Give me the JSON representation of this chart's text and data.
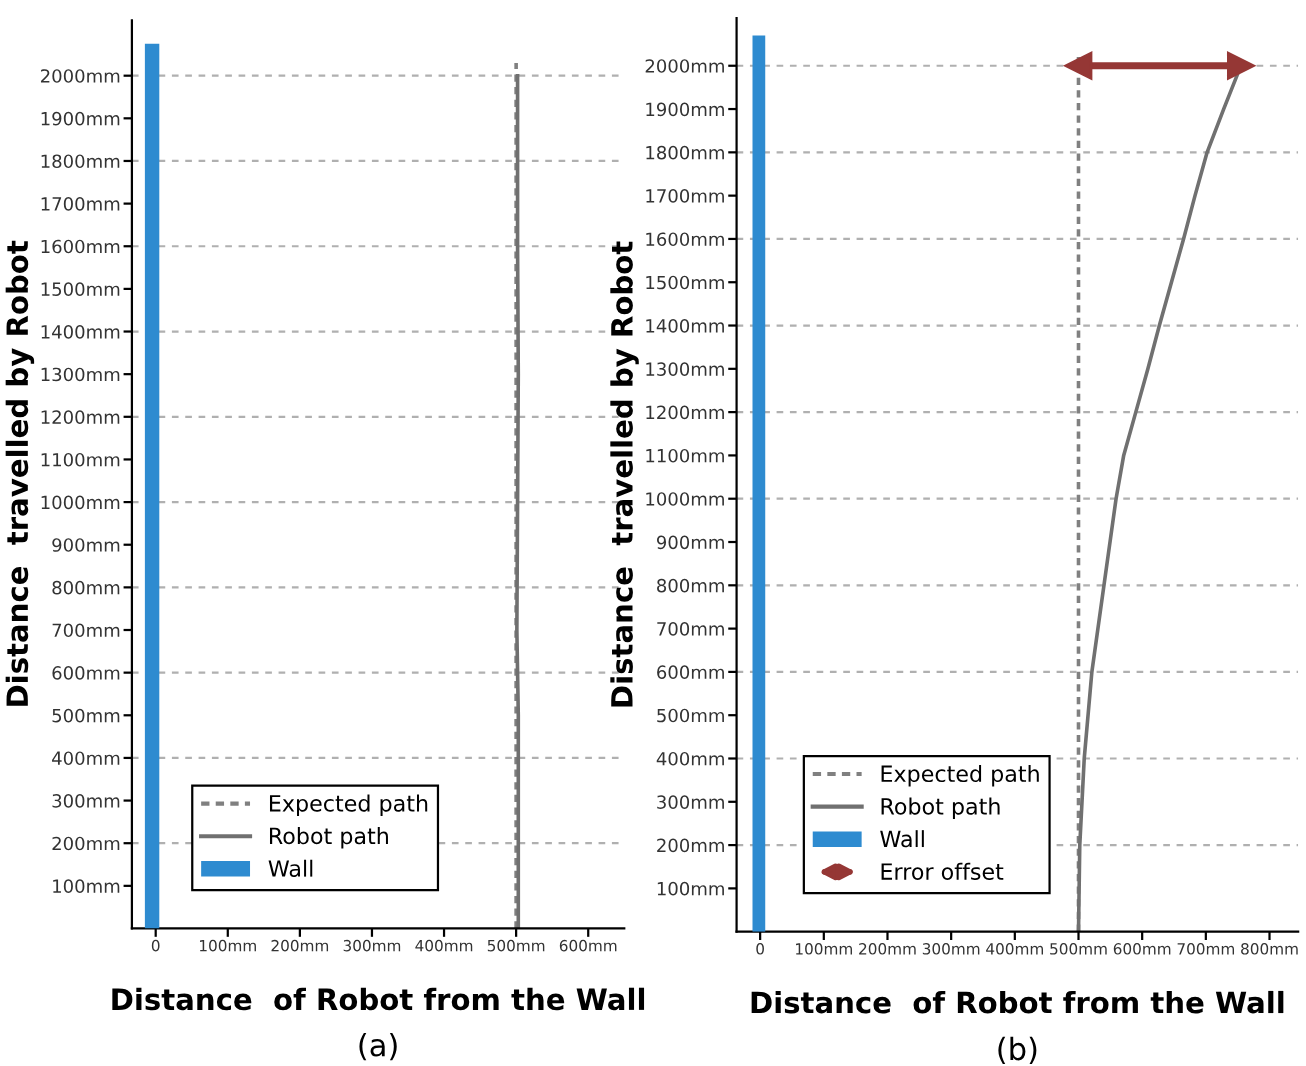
{
  "chart_data": [
    {
      "type": "line",
      "xlabel": "Distance  of Robot from the Wall",
      "ylabel": "Distance  travelled by Robot",
      "xlim": [
        -33,
        650
      ],
      "ylim": [
        0,
        2130
      ],
      "xticks": [
        {
          "value": 0,
          "label": "0"
        },
        {
          "value": 100,
          "label": "100mm"
        },
        {
          "value": 200,
          "label": "200mm"
        },
        {
          "value": 300,
          "label": "300mm"
        },
        {
          "value": 400,
          "label": "400mm"
        },
        {
          "value": 500,
          "label": "500mm"
        },
        {
          "value": 600,
          "label": "600mm"
        }
      ],
      "yticks": [
        {
          "value": 100,
          "label": "100mm"
        },
        {
          "value": 200,
          "label": "200mm"
        },
        {
          "value": 300,
          "label": "300mm"
        },
        {
          "value": 400,
          "label": "400mm"
        },
        {
          "value": 500,
          "label": "500mm"
        },
        {
          "value": 600,
          "label": "600mm"
        },
        {
          "value": 700,
          "label": "700mm"
        },
        {
          "value": 800,
          "label": "800mm"
        },
        {
          "value": 900,
          "label": "900mm"
        },
        {
          "value": 1000,
          "label": "1000mm"
        },
        {
          "value": 1100,
          "label": "1100mm"
        },
        {
          "value": 1200,
          "label": "1200mm"
        },
        {
          "value": 1300,
          "label": "1300mm"
        },
        {
          "value": 1400,
          "label": "1400mm"
        },
        {
          "value": 1500,
          "label": "1500mm"
        },
        {
          "value": 1600,
          "label": "1600mm"
        },
        {
          "value": 1700,
          "label": "1700mm"
        },
        {
          "value": 1800,
          "label": "1800mm"
        },
        {
          "value": 1900,
          "label": "1900mm"
        },
        {
          "value": 2000,
          "label": "2000mm"
        }
      ],
      "grid": "y",
      "legend": "bottom left",
      "marker": "none",
      "series": [
        {
          "name": "Expected path",
          "color": "#808080",
          "line_style": "dotted",
          "x": [
            500,
            500
          ],
          "values": [
            0,
            2030
          ]
        },
        {
          "name": "Robot path",
          "color": "#707070",
          "line_style": "solid",
          "x": [
            503,
            503,
            501,
            502,
            503,
            502,
            502
          ],
          "values": [
            0,
            500,
            700,
            1000,
            1300,
            1600,
            2000
          ]
        },
        {
          "name": "Wall",
          "type": "bar",
          "color": "#2e8bd0",
          "x": [
            -5
          ],
          "values": [
            2075
          ]
        }
      ],
      "annotations": [
        "(a)"
      ]
    },
    {
      "type": "line",
      "xlabel": "Distance  of Robot from the Wall",
      "ylabel": "Distance  travelled by Robot",
      "xlim": [
        -37,
        845
      ],
      "ylim": [
        0,
        2110
      ],
      "xticks": [
        {
          "value": 0,
          "label": "0"
        },
        {
          "value": 100,
          "label": "100mm"
        },
        {
          "value": 200,
          "label": "200mm"
        },
        {
          "value": 300,
          "label": "300mm"
        },
        {
          "value": 400,
          "label": "400mm"
        },
        {
          "value": 500,
          "label": "500mm"
        },
        {
          "value": 600,
          "label": "600mm"
        },
        {
          "value": 700,
          "label": "700mm"
        },
        {
          "value": 800,
          "label": "800mm"
        }
      ],
      "yticks": [
        {
          "value": 100,
          "label": "100mm"
        },
        {
          "value": 200,
          "label": "200mm"
        },
        {
          "value": 300,
          "label": "300mm"
        },
        {
          "value": 400,
          "label": "400mm"
        },
        {
          "value": 500,
          "label": "500mm"
        },
        {
          "value": 600,
          "label": "600mm"
        },
        {
          "value": 700,
          "label": "700mm"
        },
        {
          "value": 800,
          "label": "800mm"
        },
        {
          "value": 900,
          "label": "900mm"
        },
        {
          "value": 1000,
          "label": "1000mm"
        },
        {
          "value": 1100,
          "label": "1100mm"
        },
        {
          "value": 1200,
          "label": "1200mm"
        },
        {
          "value": 1300,
          "label": "1300mm"
        },
        {
          "value": 1400,
          "label": "1400mm"
        },
        {
          "value": 1500,
          "label": "1500mm"
        },
        {
          "value": 1600,
          "label": "1600mm"
        },
        {
          "value": 1700,
          "label": "1700mm"
        },
        {
          "value": 1800,
          "label": "1800mm"
        },
        {
          "value": 1900,
          "label": "1900mm"
        },
        {
          "value": 2000,
          "label": "2000mm"
        }
      ],
      "grid": "y",
      "legend": "bottom left",
      "marker": "none",
      "series": [
        {
          "name": "Expected path",
          "color": "#808080",
          "line_style": "dotted",
          "x": [
            500,
            500
          ],
          "values": [
            0,
            2020
          ]
        },
        {
          "name": "Robot path",
          "color": "#707070",
          "line_style": "solid",
          "x": [
            500,
            502,
            509,
            521,
            540,
            559,
            571,
            590,
            609,
            627,
            646,
            665,
            683,
            702,
            728,
            755
          ],
          "values": [
            0,
            200,
            400,
            600,
            800,
            1000,
            1100,
            1200,
            1300,
            1400,
            1500,
            1600,
            1700,
            1800,
            1900,
            2000
          ]
        },
        {
          "name": "Wall",
          "type": "bar",
          "color": "#2e8bd0",
          "x": [
            -2
          ],
          "values": [
            2070
          ]
        },
        {
          "name": "Error offset",
          "color": "#953735",
          "line_style": "solid",
          "marker": "triangle",
          "x": [
            500,
            755
          ],
          "values": [
            2000,
            2000
          ]
        }
      ],
      "annotations": [
        "(b)"
      ]
    }
  ]
}
